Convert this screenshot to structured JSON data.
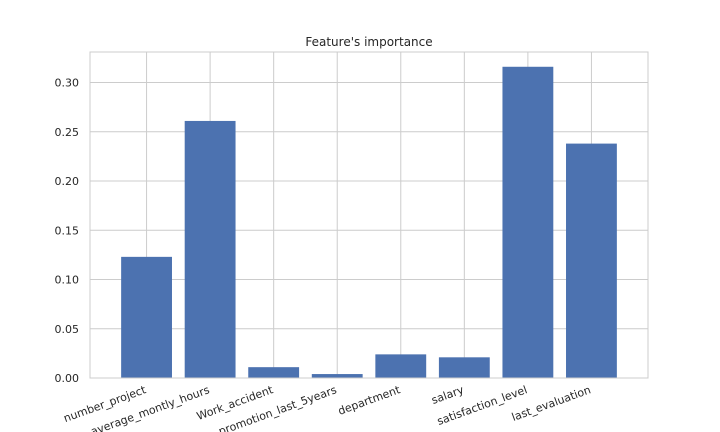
{
  "chart_data": {
    "type": "bar",
    "title": "Feature's importance",
    "xlabel": "",
    "ylabel": "",
    "categories": [
      "number_project",
      "average_montly_hours",
      "Work_accident",
      "promotion_last_5years",
      "department",
      "salary",
      "satisfaction_level",
      "last_evaluation"
    ],
    "values": [
      0.123,
      0.261,
      0.011,
      0.004,
      0.024,
      0.021,
      0.316,
      0.238
    ],
    "yticks": [
      "0.00",
      "0.05",
      "0.10",
      "0.15",
      "0.20",
      "0.25",
      "0.30"
    ],
    "ylim": [
      0,
      0.331
    ],
    "grid": true,
    "bar_color": "#4c72b0",
    "grid_color": "#cccccc"
  }
}
